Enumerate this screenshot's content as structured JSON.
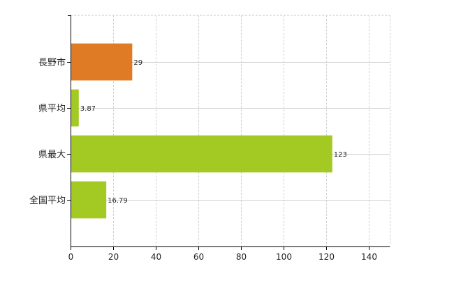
{
  "chart_data": {
    "type": "bar",
    "orientation": "horizontal",
    "categories": [
      "長野市",
      "県平均",
      "県最大",
      "全国平均"
    ],
    "values": [
      29,
      3.87,
      123,
      16.79
    ],
    "value_labels": [
      "29",
      "3.87",
      "123",
      "16.79"
    ],
    "bar_colors": [
      "#e07b25",
      "#a3c923",
      "#a3c923",
      "#a3c923"
    ],
    "xlim": [
      0,
      150
    ],
    "x_ticks": [
      0,
      20,
      40,
      60,
      80,
      100,
      120,
      140
    ],
    "grid": true,
    "title": "",
    "xlabel": "",
    "ylabel": ""
  }
}
